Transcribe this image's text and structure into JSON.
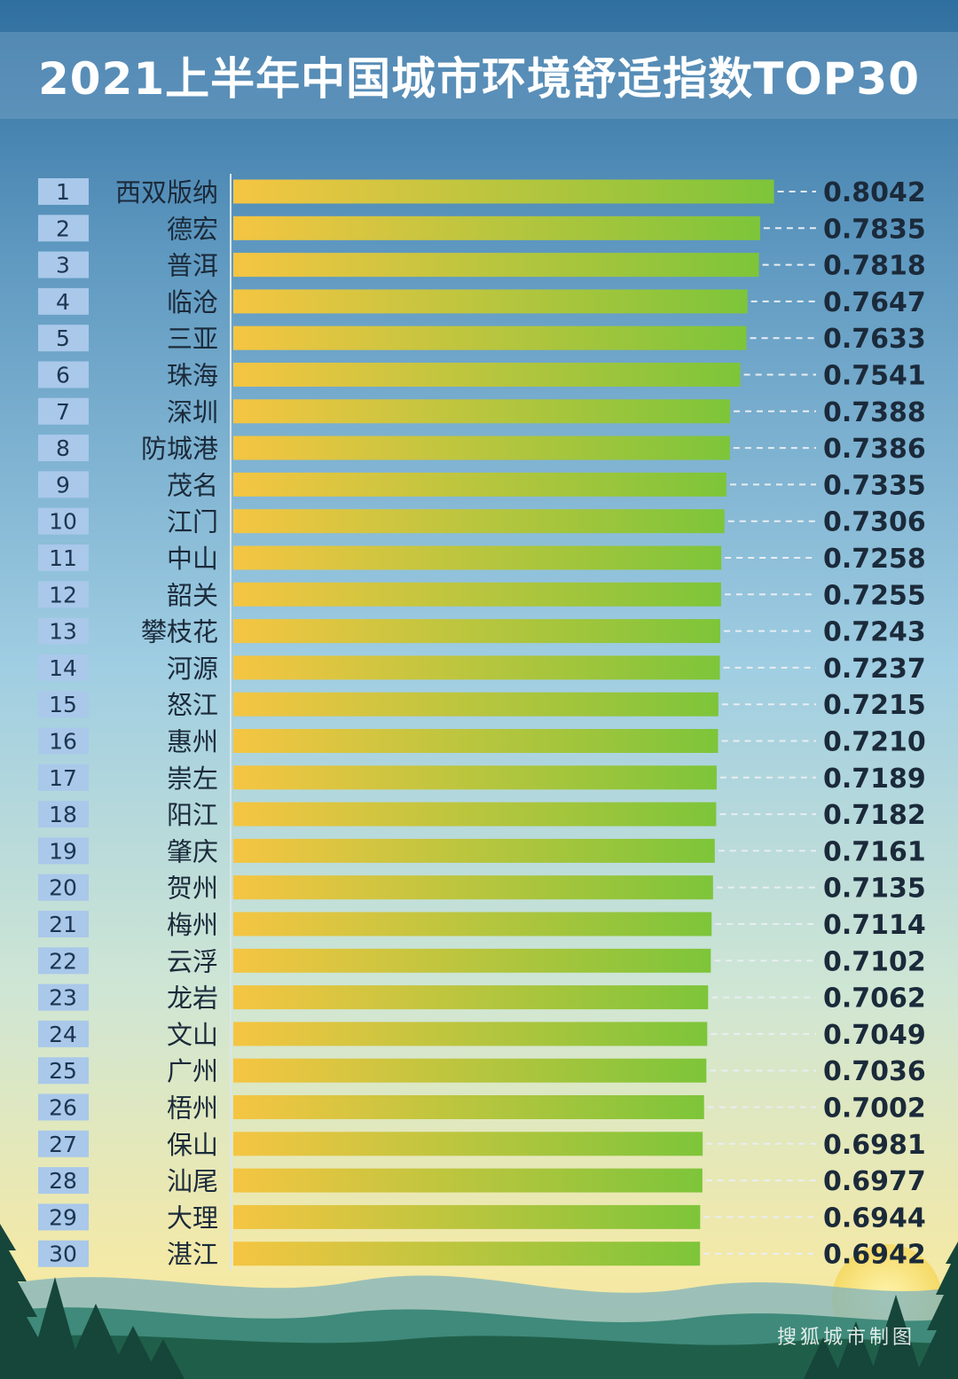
{
  "title": "2021上半年中国城市环境舒适指数TOP30",
  "watermark": "搜狐城市制图",
  "colors": {
    "bar_start": "#f5c542",
    "bar_end": "#7dc53a",
    "rank_box": "#a9c8ea",
    "text_dark": "#1b2a3a"
  },
  "chart_data": {
    "type": "bar",
    "orientation": "horizontal",
    "title": "2021上半年中国城市环境舒适指数TOP30",
    "ranks": [
      "1",
      "2",
      "3",
      "4",
      "5",
      "6",
      "7",
      "8",
      "9",
      "10",
      "11",
      "12",
      "13",
      "14",
      "15",
      "16",
      "17",
      "18",
      "19",
      "20",
      "21",
      "22",
      "23",
      "24",
      "25",
      "26",
      "27",
      "28",
      "29",
      "30"
    ],
    "categories": [
      "西双版纳",
      "德宏",
      "普洱",
      "临沧",
      "三亚",
      "珠海",
      "深圳",
      "防城港",
      "茂名",
      "江门",
      "中山",
      "韶关",
      "攀枝花",
      "河源",
      "怒江",
      "惠州",
      "崇左",
      "阳江",
      "肇庆",
      "贺州",
      "梅州",
      "云浮",
      "龙岩",
      "文山",
      "广州",
      "梧州",
      "保山",
      "汕尾",
      "大理",
      "湛江"
    ],
    "values": [
      0.8042,
      0.7835,
      0.7818,
      0.7647,
      0.7633,
      0.7541,
      0.7388,
      0.7386,
      0.7335,
      0.7306,
      0.7258,
      0.7255,
      0.7243,
      0.7237,
      0.7215,
      0.721,
      0.7189,
      0.7182,
      0.7161,
      0.7135,
      0.7114,
      0.7102,
      0.7062,
      0.7049,
      0.7036,
      0.7002,
      0.6981,
      0.6977,
      0.6944,
      0.6942
    ],
    "value_labels": [
      "0.8042",
      "0.7835",
      "0.7818",
      "0.7647",
      "0.7633",
      "0.7541",
      "0.7388",
      "0.7386",
      "0.7335",
      "0.7306",
      "0.7258",
      "0.7255",
      "0.7243",
      "0.7237",
      "0.7215",
      "0.7210",
      "0.7189",
      "0.7182",
      "0.7161",
      "0.7135",
      "0.7114",
      "0.7102",
      "0.7062",
      "0.7049",
      "0.7036",
      "0.7002",
      "0.6981",
      "0.6977",
      "0.6944",
      "0.6942"
    ],
    "xlabel": "",
    "ylabel": "",
    "grid": false,
    "legend": "none"
  }
}
